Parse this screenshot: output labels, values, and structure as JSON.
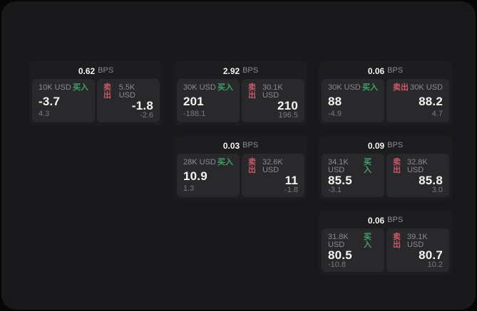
{
  "colors": {
    "page_bg": "#060606",
    "panel_bg": "#19191b",
    "card_bg": "#1d1d1f",
    "pane_bg": "#29292b",
    "value": "#f4f4f4",
    "muted": "#8c8c90",
    "sub": "#7b7b7f",
    "buy": "#42a168",
    "sell": "#c9596a"
  },
  "labels": {
    "bps_unit": "BPS",
    "buy": "买入",
    "sell": "卖出"
  },
  "cards": [
    {
      "bps": "0.62",
      "buy": {
        "size": "10K USD",
        "value": "-3.7",
        "sub": "4.3"
      },
      "sell": {
        "size": "5.5K USD",
        "value": "-1.8",
        "sub": "-2.6"
      }
    },
    {
      "bps": "2.92",
      "buy": {
        "size": "30K USD",
        "value": "201",
        "sub": "-188.1"
      },
      "sell": {
        "size": "30.1K USD",
        "value": "210",
        "sub": "196.5"
      }
    },
    {
      "bps": "0.06",
      "buy": {
        "size": "30K USD",
        "value": "88",
        "sub": "-4.9"
      },
      "sell": {
        "size": "30K USD",
        "value": "88.2",
        "sub": "4.7"
      }
    },
    {
      "bps": "0.03",
      "buy": {
        "size": "28K USD",
        "value": "10.9",
        "sub": "1.3"
      },
      "sell": {
        "size": "32.6K USD",
        "value": "11",
        "sub": "-1.8"
      }
    },
    {
      "bps": "0.09",
      "buy": {
        "size": "34.1K USD",
        "value": "85.5",
        "sub": "-3.1"
      },
      "sell": {
        "size": "32.8K USD",
        "value": "85.8",
        "sub": "3.0"
      }
    },
    {
      "bps": "0.06",
      "buy": {
        "size": "31.8K USD",
        "value": "80.5",
        "sub": "-10.8"
      },
      "sell": {
        "size": "39.1K USD",
        "value": "80.7",
        "sub": "10.2"
      }
    }
  ]
}
